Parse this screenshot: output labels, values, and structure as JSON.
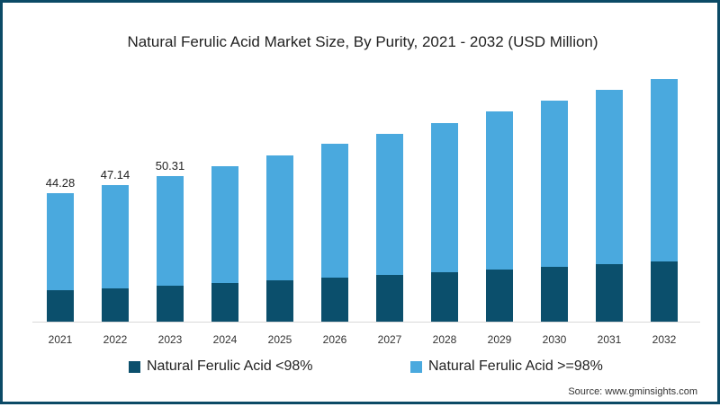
{
  "chart_data": {
    "type": "bar",
    "stacked": true,
    "title": "Natural Ferulic Acid Market Size, By Purity, 2021 - 2032 (USD Million)",
    "xlabel": "",
    "ylabel": "",
    "categories": [
      "2021",
      "2022",
      "2023",
      "2024",
      "2025",
      "2026",
      "2027",
      "2028",
      "2029",
      "2030",
      "2031",
      "2032"
    ],
    "series": [
      {
        "name": "Natural Ferulic Acid <98%",
        "color": "#0b4f6c",
        "values": [
          10.8,
          11.5,
          12.4,
          13.3,
          14.2,
          15.2,
          16.1,
          17.0,
          18.0,
          18.9,
          19.8,
          20.7
        ]
      },
      {
        "name": "Natural Ferulic Acid >=98%",
        "color": "#4aa9de",
        "values": [
          33.5,
          35.6,
          37.9,
          40.3,
          43.1,
          46.1,
          48.6,
          51.4,
          54.4,
          57.3,
          60.1,
          62.9
        ]
      }
    ],
    "totals": [
      44.28,
      47.14,
      50.31,
      53.6,
      57.3,
      61.3,
      64.7,
      68.4,
      72.4,
      76.2,
      79.9,
      83.6
    ],
    "data_labels": [
      {
        "category": "2021",
        "text": "44.28"
      },
      {
        "category": "2022",
        "text": "47.14"
      },
      {
        "category": "2023",
        "text": "50.31"
      }
    ],
    "ylim": [
      0,
      90
    ],
    "grid": false,
    "legend_position": "bottom",
    "source": "Source: www.gminsights.com"
  },
  "legend": [
    {
      "label": "Natural Ferulic Acid <98%",
      "color": "#0b4f6c"
    },
    {
      "label": "Natural Ferulic Acid >=98%",
      "color": "#4aa9de"
    }
  ],
  "colors": {
    "frame": "#0b4a66",
    "dark": "#0b4f6c",
    "light": "#4aa9de"
  }
}
